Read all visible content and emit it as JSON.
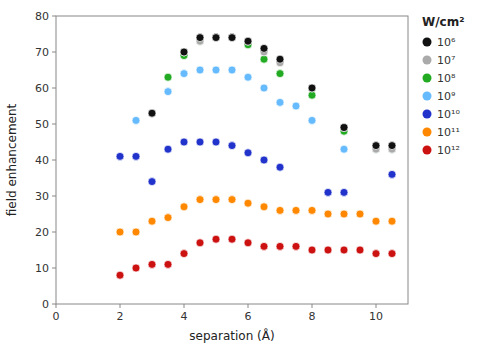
{
  "chart_data": {
    "type": "scatter",
    "xlabel": "separation (Å)",
    "ylabel": "field enhancement",
    "legend_title": "W/cm²",
    "legend": "right",
    "grid": false,
    "marker": "circle",
    "xlim": [
      0,
      11
    ],
    "ylim": [
      0,
      80
    ],
    "xticks": [
      0,
      2,
      4,
      6,
      8,
      10
    ],
    "yticks": [
      0,
      10,
      20,
      30,
      40,
      50,
      60,
      70,
      80
    ],
    "series": [
      {
        "name": "10⁶",
        "color": "#111111",
        "x": [
          3.0,
          4.0,
          4.5,
          5.0,
          5.5,
          6.0,
          6.5,
          7.0,
          8.0,
          9.0,
          10.0,
          10.5
        ],
        "values": [
          53,
          70,
          74,
          74,
          74,
          73,
          71,
          68,
          60,
          49,
          44,
          44
        ]
      },
      {
        "name": "10⁷",
        "color": "#aaaaaa",
        "x": [
          3.0,
          4.0,
          4.5,
          5.0,
          5.5,
          6.0,
          6.5,
          7.0,
          8.0,
          9.0,
          10.0,
          10.5
        ],
        "values": [
          53,
          70,
          73,
          74,
          74,
          73,
          70,
          67,
          60,
          49,
          43,
          43
        ]
      },
      {
        "name": "10⁸",
        "color": "#22aa22",
        "x": [
          3.0,
          3.5,
          4.0,
          4.5,
          5.0,
          5.5,
          6.0,
          6.5,
          7.0,
          8.0,
          9.0,
          10.0,
          10.5
        ],
        "values": [
          53,
          63,
          69,
          73,
          74,
          74,
          72,
          68,
          64,
          58,
          48,
          43,
          43
        ]
      },
      {
        "name": "10⁹",
        "color": "#66bbff",
        "x": [
          2.5,
          3.5,
          4.0,
          4.5,
          5.0,
          5.5,
          6.0,
          6.5,
          7.0,
          7.5,
          8.0,
          9.0,
          10.5
        ],
        "values": [
          51,
          59,
          64,
          65,
          65,
          65,
          63,
          60,
          56,
          55,
          51,
          43,
          43
        ]
      },
      {
        "name": "10¹⁰",
        "color": "#2233cc",
        "x": [
          2.0,
          2.5,
          3.0,
          3.5,
          4.0,
          4.5,
          5.0,
          5.5,
          6.0,
          6.5,
          7.0,
          8.5,
          9.0,
          10.5
        ],
        "values": [
          41,
          41,
          34,
          43,
          45,
          45,
          45,
          44,
          42,
          40,
          38,
          31,
          31,
          36
        ]
      },
      {
        "name": "10¹¹",
        "color": "#ff8800",
        "x": [
          2.0,
          2.5,
          3.0,
          3.5,
          4.0,
          4.5,
          5.0,
          5.5,
          6.0,
          6.5,
          7.0,
          7.5,
          8.0,
          8.5,
          9.0,
          9.5,
          10.0,
          10.5
        ],
        "values": [
          20,
          20,
          23,
          24,
          27,
          29,
          29,
          29,
          28,
          27,
          26,
          26,
          26,
          25,
          25,
          25,
          23,
          23
        ]
      },
      {
        "name": "10¹²",
        "color": "#cc1111",
        "x": [
          2.0,
          2.5,
          3.0,
          3.5,
          4.0,
          4.5,
          5.0,
          5.5,
          6.0,
          6.5,
          7.0,
          7.5,
          8.0,
          8.5,
          9.0,
          9.5,
          10.0,
          10.5
        ],
        "values": [
          8,
          10,
          11,
          11,
          14,
          17,
          18,
          18,
          17,
          16,
          16,
          16,
          15,
          15,
          15,
          15,
          14,
          14
        ]
      }
    ]
  }
}
